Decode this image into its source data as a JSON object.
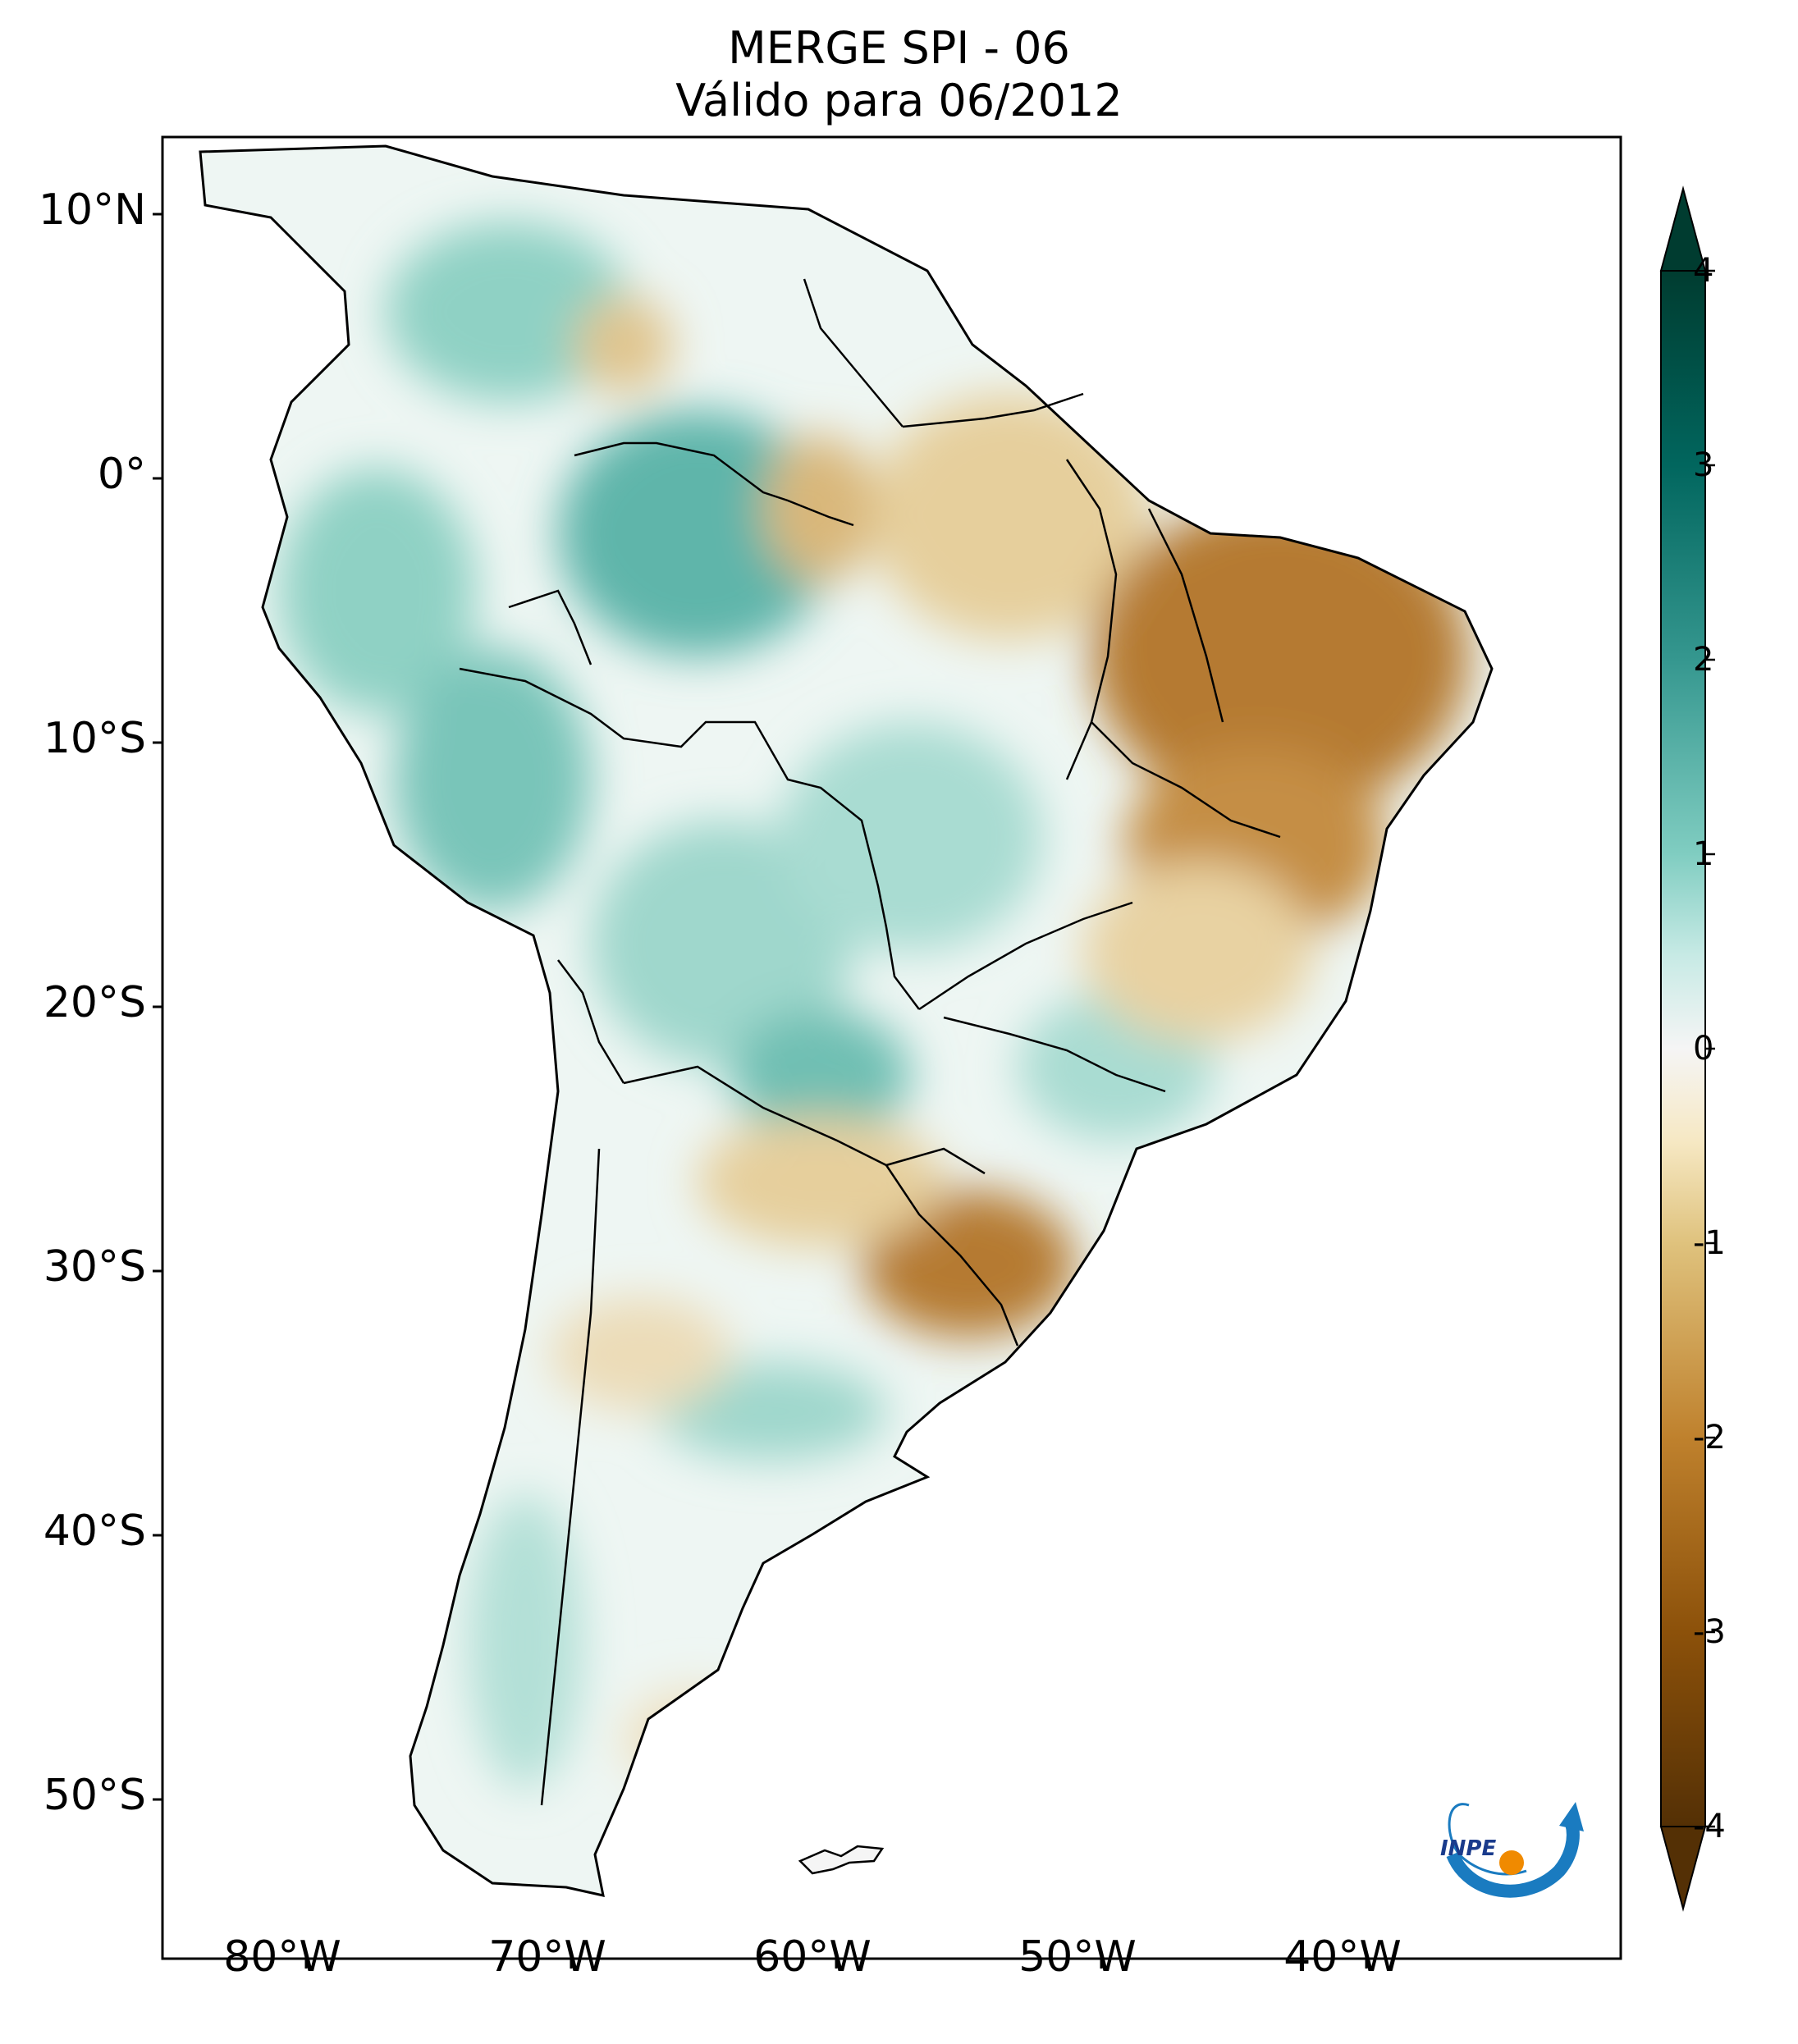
{
  "title": {
    "line1": "MERGE   SPI - 06",
    "line2": "Válido para 06/2012"
  },
  "map": {
    "latitude_labels": [
      "10°N",
      "0°",
      "10°S",
      "20°S",
      "30°S",
      "40°S",
      "50°S"
    ],
    "longitude_labels": [
      "80°W",
      "70°W",
      "60°W",
      "50°W",
      "40°W"
    ],
    "lat_values": [
      10,
      0,
      -10,
      -20,
      -30,
      -40,
      -50
    ],
    "lon_values": [
      -80,
      -70,
      -60,
      -50,
      -40
    ],
    "lat_range": [
      -56,
      12.5
    ],
    "lon_range": [
      -85,
      -30
    ]
  },
  "colorbar": {
    "ticks": [
      "4",
      "3",
      "2",
      "1",
      "0",
      "-1",
      "-2",
      "-3",
      "-4"
    ],
    "range": [
      -4,
      4
    ],
    "colors": {
      "max": "#003c30",
      "high": "#01665e",
      "mid_high": "#35978f",
      "low_high": "#80cdc1",
      "near": "#c7eae5",
      "zero": "#f5f5f5",
      "near_neg": "#f6e8c3",
      "low_neg": "#dfc27d",
      "mid_neg": "#bf812d",
      "neg": "#8c510a",
      "min": "#543005"
    }
  },
  "logo": {
    "text": "INPE",
    "colors": {
      "arc": "#1a7bc0",
      "dot": "#f08a00"
    }
  }
}
